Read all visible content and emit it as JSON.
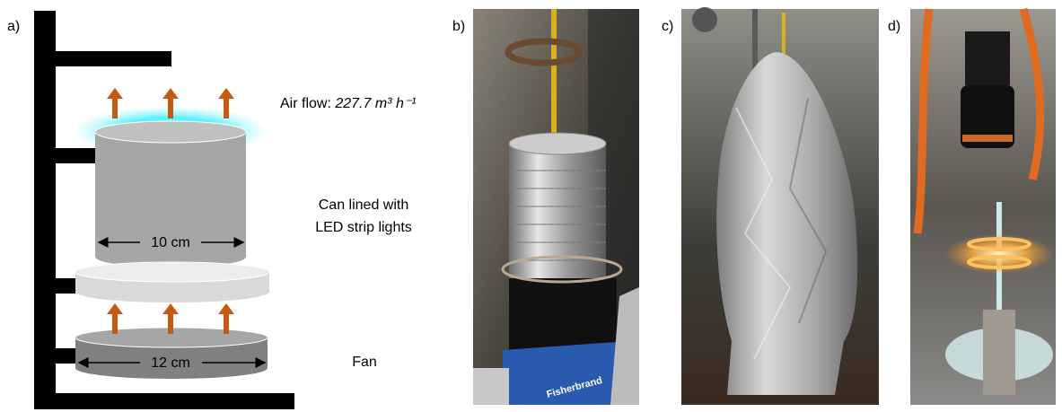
{
  "panels": {
    "a": "a)",
    "b": "b)",
    "c": "c)",
    "d": "d)"
  },
  "diagram": {
    "air_flow_label": "Air flow:",
    "air_flow_value": "227.7 m³ h⁻¹",
    "can_label": [
      "Can lined with",
      "LED strip lights"
    ],
    "can_width": "10 cm",
    "fan_width": "12 cm",
    "fan_label": "Fan"
  },
  "photo_b": {
    "brand": "Fisherbrand"
  }
}
